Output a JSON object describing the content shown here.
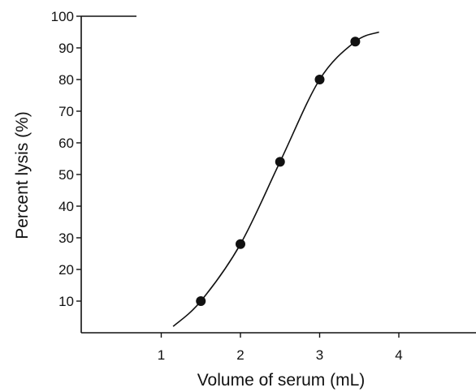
{
  "chart_data": {
    "type": "scatter",
    "title": "",
    "xlabel": "Volume of serum  (mL)",
    "ylabel": "Percent lysis  (%)",
    "xlim": [
      0,
      5
    ],
    "ylim": [
      0,
      100
    ],
    "xticks": [
      1,
      2,
      3,
      4
    ],
    "xtick_labels": [
      "1",
      "2",
      "3",
      "4"
    ],
    "yticks": [
      10,
      20,
      30,
      40,
      50,
      60,
      70,
      80,
      90,
      100
    ],
    "ytick_labels": [
      "10",
      "20",
      "30",
      "40",
      "50",
      "60",
      "70",
      "80",
      "90",
      "100"
    ],
    "grid": false,
    "legend": "none",
    "series": [
      {
        "style": "markers",
        "x": [
          1.5,
          2.0,
          2.5,
          3.0,
          3.45
        ],
        "y": [
          10,
          28,
          54,
          80,
          92
        ]
      },
      {
        "style": "fitted-curve",
        "x": [
          1.15,
          1.5,
          2.0,
          2.5,
          3.0,
          3.45,
          3.75
        ],
        "y": [
          2,
          10,
          28,
          54,
          80,
          92,
          95
        ]
      }
    ],
    "colors": {
      "ink": "#111111",
      "background": "#ffffff"
    }
  }
}
